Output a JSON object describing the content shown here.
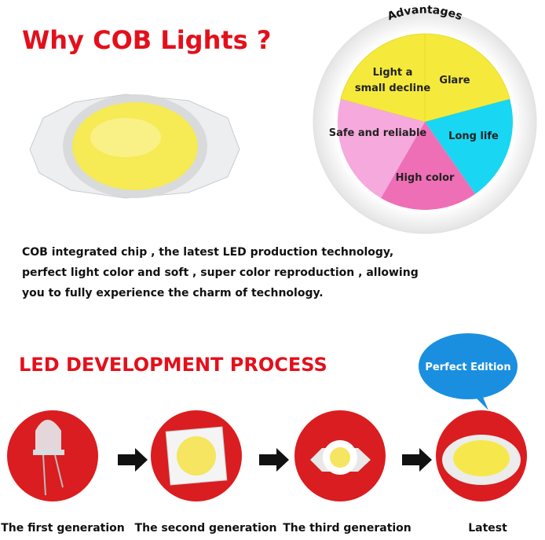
{
  "title": "Why COB Lights ?",
  "advantages": {
    "title": "Advantages",
    "segments": [
      "Light a",
      "small decline",
      "Glare",
      "Long life",
      "High color",
      "Safe and reliable"
    ]
  },
  "description": [
    "COB integrated chip , the latest LED production technology,",
    "perfect light color and soft , super color reproduction , allowing",
    "you to fully experience the charm of technology."
  ],
  "process": {
    "title": "LED DEVELOPMENT PROCESS",
    "badge": "Perfect Edition",
    "generations": [
      "The first generation",
      "The second generation",
      "The third generation",
      "Latest"
    ]
  }
}
